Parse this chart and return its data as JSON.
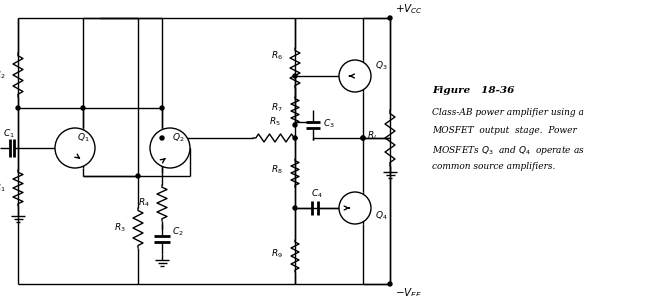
{
  "fig_width": 6.52,
  "fig_height": 2.96,
  "dpi": 100,
  "bg_color": "#ffffff",
  "line_color": "#000000",
  "figure_label": "Figure   18-36",
  "caption_lines": [
    "Class-AB power amplifier using a",
    "MOSFET  output  stage.  Power",
    "MOSFETs Q_3  and Q_4  operate as",
    "common source amplifiers."
  ]
}
